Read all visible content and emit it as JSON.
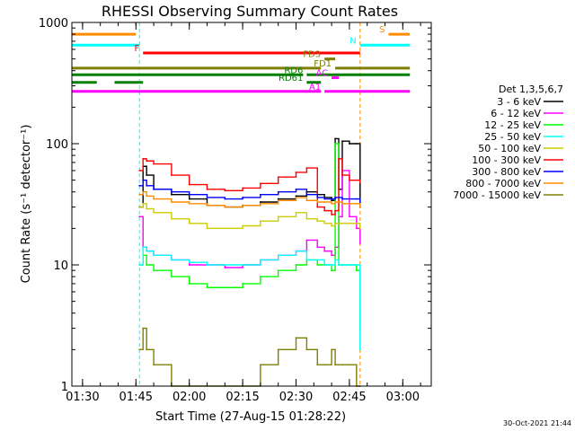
{
  "chart_data": {
    "type": "line",
    "title": "RHESSI Observing Summary Count Rates",
    "xlabel": "Start Time (27-Aug-15 01:28:22)",
    "ylabel": "Count Rate (s⁻¹ detector⁻¹)",
    "y_scale": "log",
    "xlim": [
      "01:27",
      "03:08"
    ],
    "ylim": [
      1,
      1000
    ],
    "x_ticks": [
      "01:30",
      "01:45",
      "02:00",
      "02:15",
      "02:30",
      "02:45",
      "03:00"
    ],
    "y_ticks": [
      "1",
      "10",
      "100",
      "1000"
    ],
    "legend_title": "Det 1,3,5,6,7",
    "legend_position": "right",
    "timestamp": "30-Oct-2021 21:44",
    "data_gaps": [
      [
        "01:27",
        "01:46"
      ],
      [
        "02:48",
        "03:08"
      ]
    ],
    "series": [
      {
        "name": "3 - 6 keV",
        "color": "#000000",
        "x": [
          "01:46",
          "01:47",
          "01:48",
          "01:50",
          "01:55",
          "02:00",
          "02:05",
          "02:10",
          "02:15",
          "02:20",
          "02:25",
          "02:30",
          "02:33",
          "02:36",
          "02:38",
          "02:40",
          "02:41",
          "02:42",
          "02:43",
          "02:45",
          "02:47",
          "02:48"
        ],
        "values": [
          30,
          65,
          55,
          42,
          38,
          35,
          31,
          30,
          31,
          33,
          35,
          37,
          40,
          38,
          36,
          34,
          110,
          42,
          105,
          100,
          100,
          30
        ]
      },
      {
        "name": "6 - 12 keV",
        "color": "#ff00ff",
        "x": [
          "01:46",
          "01:47",
          "01:48",
          "01:50",
          "01:55",
          "02:00",
          "02:05",
          "02:10",
          "02:15",
          "02:20",
          "02:25",
          "02:30",
          "02:33",
          "02:36",
          "02:38",
          "02:40",
          "02:41",
          "02:42",
          "02:43",
          "02:45",
          "02:47",
          "02:48"
        ],
        "values": [
          25,
          14,
          13,
          12,
          11,
          10,
          10,
          9.5,
          10,
          11,
          12,
          13,
          16,
          14,
          13,
          12,
          14,
          25,
          60,
          25,
          20,
          15
        ]
      },
      {
        "name": "12 - 25 keV",
        "color": "#00ff00",
        "x": [
          "01:46",
          "01:47",
          "01:48",
          "01:50",
          "01:55",
          "02:00",
          "02:05",
          "02:10",
          "02:15",
          "02:20",
          "02:25",
          "02:30",
          "02:33",
          "02:36",
          "02:38",
          "02:40",
          "02:41",
          "02:42",
          "02:43",
          "02:45",
          "02:47",
          "02:48"
        ],
        "values": [
          10,
          12,
          10,
          9,
          8,
          7,
          6.5,
          6.5,
          7,
          8,
          9,
          10,
          11,
          10,
          10,
          9,
          100,
          10,
          10,
          10,
          9,
          3
        ]
      },
      {
        "name": "25 - 50 keV",
        "color": "#00ffff",
        "x": [
          "01:46",
          "01:47",
          "01:48",
          "01:50",
          "01:55",
          "02:00",
          "02:05",
          "02:10",
          "02:15",
          "02:20",
          "02:25",
          "02:30",
          "02:33",
          "02:36",
          "02:38",
          "02:40",
          "02:41",
          "02:42",
          "02:43",
          "02:45",
          "02:47",
          "02:48"
        ],
        "values": [
          10,
          14,
          13,
          12,
          11,
          10.5,
          10,
          10,
          10,
          11,
          12,
          13,
          11,
          11,
          10,
          10,
          11,
          10,
          10,
          10,
          10,
          2
        ]
      },
      {
        "name": "50 - 100 keV",
        "color": "#cccc00",
        "x": [
          "01:46",
          "01:47",
          "01:48",
          "01:50",
          "01:55",
          "02:00",
          "02:05",
          "02:10",
          "02:15",
          "02:20",
          "02:25",
          "02:30",
          "02:33",
          "02:36",
          "02:38",
          "02:40",
          "02:41",
          "02:42",
          "02:43",
          "02:45",
          "02:47",
          "02:48"
        ],
        "values": [
          30,
          32,
          29,
          27,
          24,
          22,
          20,
          20,
          21,
          23,
          25,
          27,
          24,
          23,
          22,
          21,
          22,
          22,
          22,
          22,
          22,
          20
        ]
      },
      {
        "name": "100 - 300 keV",
        "color": "#ff0000",
        "x": [
          "01:46",
          "01:47",
          "01:48",
          "01:50",
          "01:55",
          "02:00",
          "02:05",
          "02:10",
          "02:15",
          "02:20",
          "02:25",
          "02:30",
          "02:33",
          "02:36",
          "02:38",
          "02:40",
          "02:41",
          "02:42",
          "02:43",
          "02:45",
          "02:47",
          "02:48"
        ],
        "values": [
          60,
          75,
          72,
          68,
          55,
          46,
          42,
          41,
          43,
          47,
          53,
          58,
          63,
          30,
          28,
          26,
          28,
          75,
          55,
          50,
          50,
          48
        ]
      },
      {
        "name": "300 - 800 keV",
        "color": "#0000ff",
        "x": [
          "01:46",
          "01:47",
          "01:48",
          "01:50",
          "01:55",
          "02:00",
          "02:05",
          "02:10",
          "02:15",
          "02:20",
          "02:25",
          "02:30",
          "02:33",
          "02:36",
          "02:38",
          "02:40",
          "02:41",
          "02:42",
          "02:43",
          "02:45",
          "02:47",
          "02:48"
        ],
        "values": [
          45,
          50,
          45,
          42,
          40,
          38,
          36,
          35,
          36,
          38,
          40,
          42,
          38,
          36,
          35,
          35,
          36,
          36,
          35,
          35,
          35,
          33
        ]
      },
      {
        "name": "800 - 7000 keV",
        "color": "#ff8c00",
        "x": [
          "01:46",
          "01:47",
          "01:48",
          "01:50",
          "01:55",
          "02:00",
          "02:05",
          "02:10",
          "02:15",
          "02:20",
          "02:25",
          "02:30",
          "02:33",
          "02:36",
          "02:38",
          "02:40",
          "02:41",
          "02:42",
          "02:43",
          "02:45",
          "02:47",
          "02:48"
        ],
        "values": [
          38,
          40,
          37,
          35,
          33,
          32,
          31,
          30,
          31,
          32,
          34,
          36,
          34,
          33,
          33,
          32,
          33,
          33,
          32,
          32,
          32,
          30
        ]
      },
      {
        "name": "7000 - 15000 keV",
        "color": "#808000",
        "x": [
          "01:46",
          "01:47",
          "01:48",
          "01:50",
          "01:55",
          "02:00",
          "02:05",
          "02:10",
          "02:15",
          "02:20",
          "02:25",
          "02:30",
          "02:33",
          "02:36",
          "02:38",
          "02:40",
          "02:41",
          "02:42",
          "02:43",
          "02:45",
          "02:47",
          "02:48"
        ],
        "values": [
          2,
          3,
          2,
          1.5,
          1,
          1,
          1,
          1,
          1,
          1.5,
          2,
          2.5,
          2,
          1.5,
          1.5,
          2,
          1.5,
          1.5,
          1.5,
          1.5,
          1,
          1
        ]
      }
    ],
    "flags": [
      {
        "label": "S",
        "color": "#ff8c00",
        "intervals": [
          [
            "01:27",
            "01:45"
          ],
          [
            "02:56",
            "03:02"
          ]
        ],
        "level": 800
      },
      {
        "label": "N",
        "color": "#00ffff",
        "intervals": [
          [
            "01:27",
            "01:46"
          ],
          [
            "02:48",
            "03:02"
          ]
        ],
        "level": 650
      },
      {
        "label": "F",
        "color": "#ff0000",
        "intervals": [
          [
            "01:47",
            "02:48"
          ]
        ],
        "level": 560
      },
      {
        "label": "FD1",
        "color": "#808000",
        "intervals": [
          [
            "01:27",
            "02:37"
          ],
          [
            "02:41",
            "03:02"
          ]
        ],
        "level": 420
      },
      {
        "label": "FD3",
        "color": "#808000",
        "intervals": [
          [
            "02:38",
            "02:41"
          ]
        ],
        "level": 500
      },
      {
        "label": "RD6",
        "color": "#008000",
        "intervals": [
          [
            "01:27",
            "02:32"
          ],
          [
            "02:33",
            "03:02"
          ]
        ],
        "level": 370
      },
      {
        "label": "RD61",
        "color": "#008000",
        "intervals": [
          [
            "01:27",
            "01:34"
          ],
          [
            "01:39",
            "01:47"
          ],
          [
            "02:33",
            "02:37"
          ]
        ],
        "level": 320
      },
      {
        "label": "A1",
        "color": "#ff00ff",
        "intervals": [
          [
            "01:27",
            "02:37"
          ],
          [
            "02:38",
            "03:02"
          ]
        ],
        "level": 270
      },
      {
        "label": "AC",
        "color": "#ff00ff",
        "intervals": [
          [
            "02:40",
            "02:42"
          ]
        ],
        "level": 350
      }
    ],
    "grid": false
  }
}
